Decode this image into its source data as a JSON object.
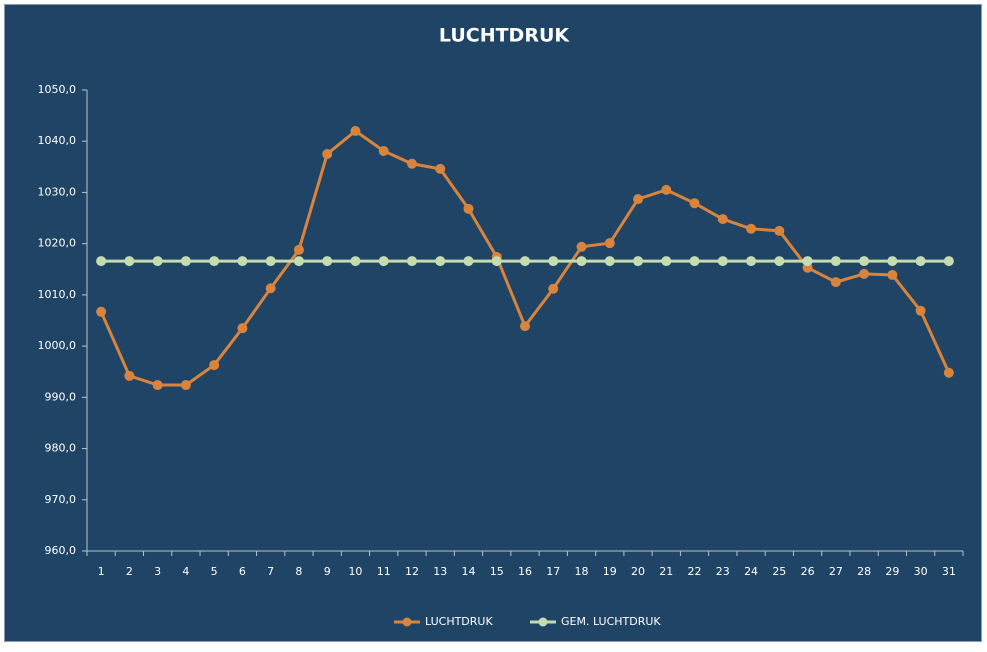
{
  "chart_data": {
    "type": "line",
    "title": "LUCHTDRUK",
    "categories": [
      "1",
      "2",
      "3",
      "4",
      "5",
      "6",
      "7",
      "8",
      "9",
      "10",
      "11",
      "12",
      "13",
      "14",
      "15",
      "16",
      "17",
      "18",
      "19",
      "20",
      "21",
      "22",
      "23",
      "24",
      "25",
      "26",
      "27",
      "28",
      "29",
      "30",
      "31"
    ],
    "series": [
      {
        "name": "LUCHTDRUK",
        "color": "#d9843c",
        "values": [
          1006.7,
          994.2,
          992.4,
          992.4,
          996.3,
          1003.5,
          1011.3,
          1018.8,
          1037.5,
          1042.0,
          1038.1,
          1035.6,
          1034.6,
          1026.8,
          1017.4,
          1003.9,
          1011.2,
          1019.4,
          1020.1,
          1028.7,
          1030.5,
          1027.9,
          1024.8,
          1022.9,
          1022.5,
          1015.3,
          1012.5,
          1014.1,
          1013.9,
          1006.9,
          994.8
        ]
      },
      {
        "name": "GEM. LUCHTDRUK",
        "color": "#c4dcb0",
        "values": [
          1016.6,
          1016.6,
          1016.6,
          1016.6,
          1016.6,
          1016.6,
          1016.6,
          1016.6,
          1016.6,
          1016.6,
          1016.6,
          1016.6,
          1016.6,
          1016.6,
          1016.6,
          1016.6,
          1016.6,
          1016.6,
          1016.6,
          1016.6,
          1016.6,
          1016.6,
          1016.6,
          1016.6,
          1016.6,
          1016.6,
          1016.6,
          1016.6,
          1016.6,
          1016.6,
          1016.6
        ]
      }
    ],
    "ylim": [
      960,
      1050
    ],
    "yticks": [
      {
        "value": 960,
        "label": "960,0"
      },
      {
        "value": 970,
        "label": "970,0"
      },
      {
        "value": 980,
        "label": "980,0"
      },
      {
        "value": 990,
        "label": "990,0"
      },
      {
        "value": 1000,
        "label": "1000,0"
      },
      {
        "value": 1010,
        "label": "1010,0"
      },
      {
        "value": 1020,
        "label": "1020,0"
      },
      {
        "value": 1030,
        "label": "1030,0"
      },
      {
        "value": 1040,
        "label": "1040,0"
      },
      {
        "value": 1050,
        "label": "1050,0"
      }
    ],
    "grid": false,
    "legend": "bottom"
  }
}
